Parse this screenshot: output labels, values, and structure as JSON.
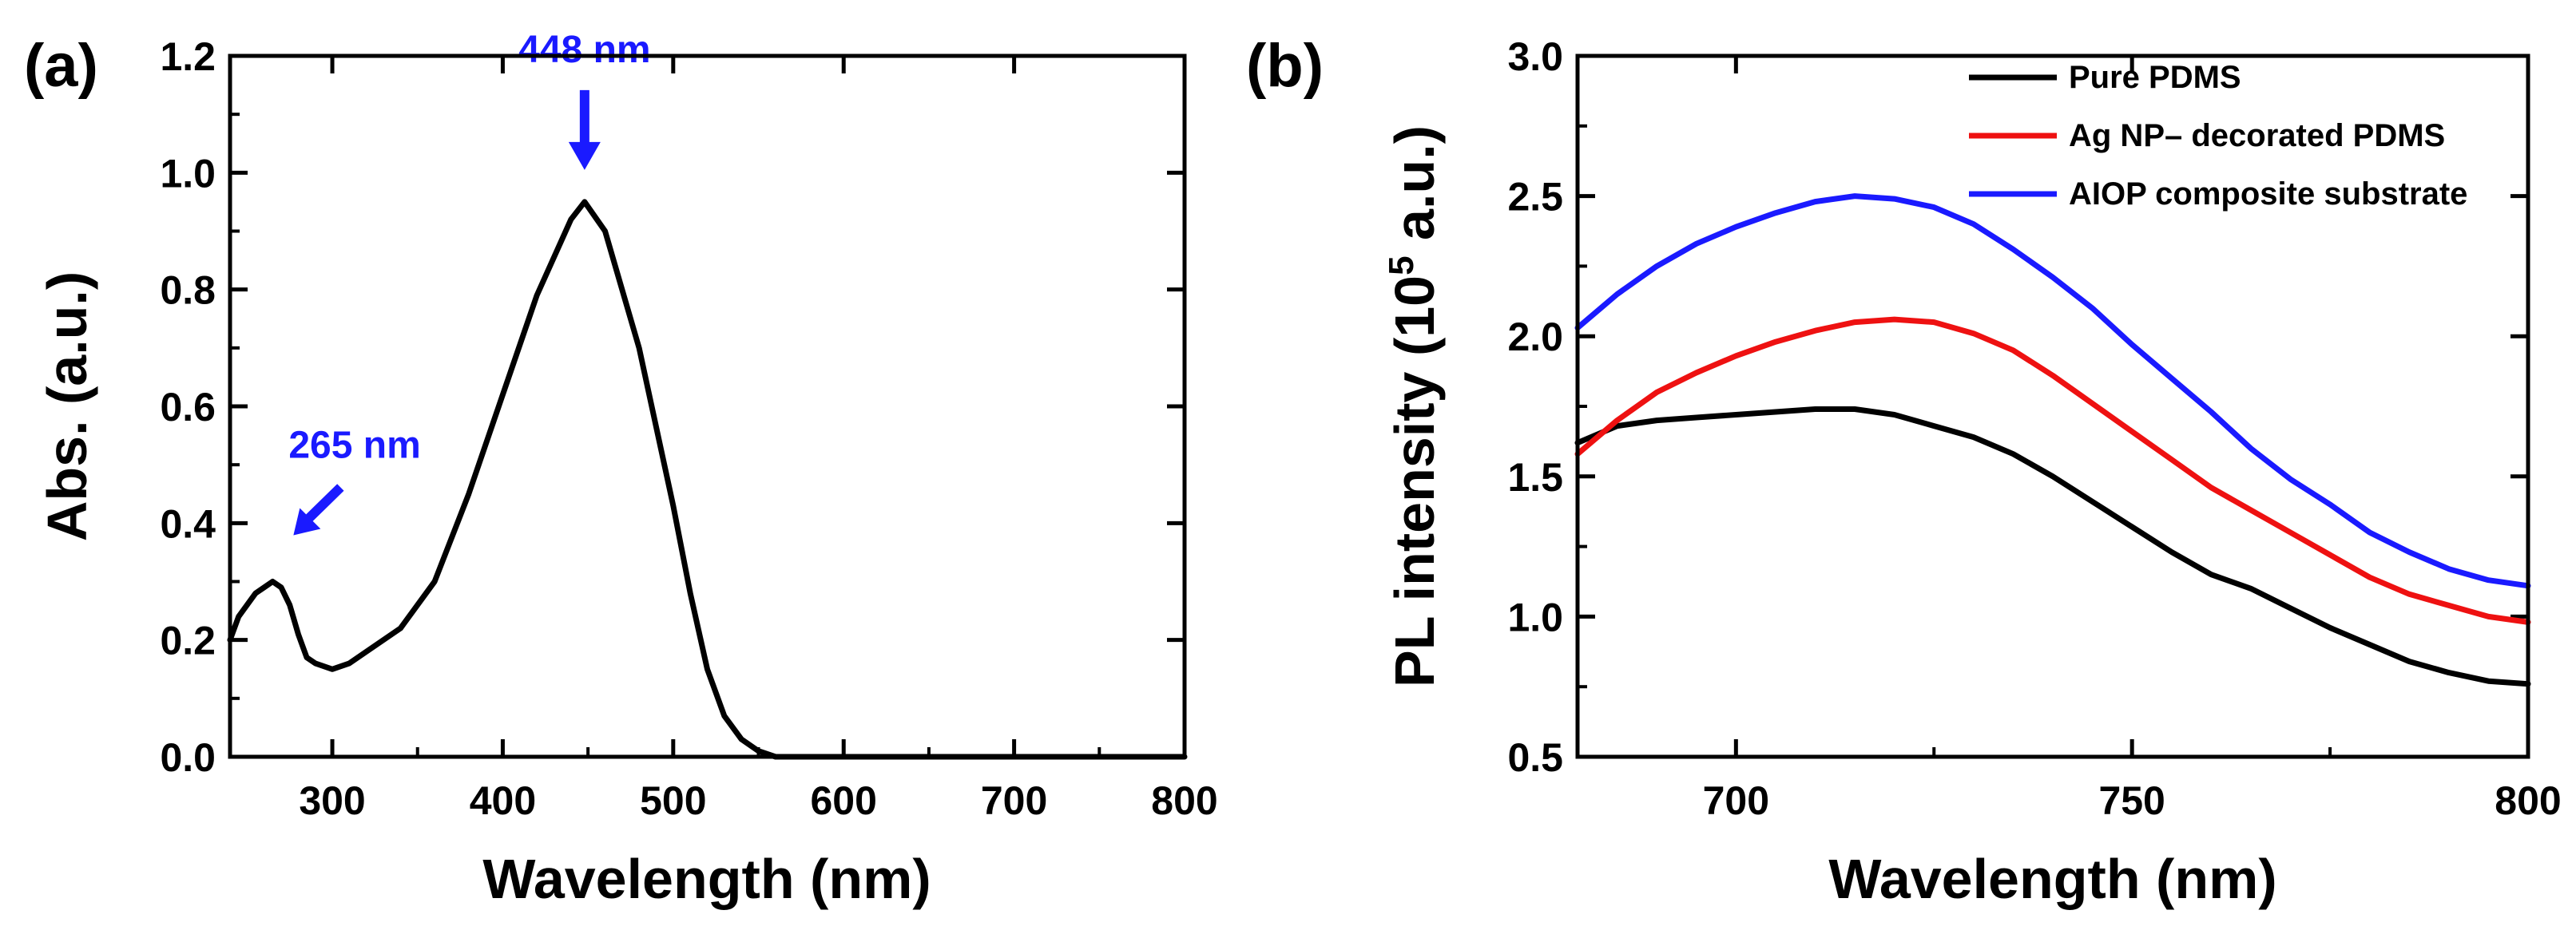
{
  "chart_data": [
    {
      "type": "line",
      "panel_label": "(a)",
      "xlabel": "Wavelength (nm)",
      "ylabel": "Abs. (a.u.)",
      "xlim": [
        240,
        800
      ],
      "ylim": [
        0.0,
        1.2
      ],
      "xticks": [
        300,
        400,
        500,
        600,
        700,
        800
      ],
      "xtick_labels": [
        "300",
        "400",
        "500",
        "600",
        "700",
        "800"
      ],
      "yticks": [
        0.0,
        0.2,
        0.4,
        0.6,
        0.8,
        1.0,
        1.2
      ],
      "ytick_labels": [
        "0.0",
        "0.2",
        "0.4",
        "0.6",
        "0.8",
        "1.0",
        "1.2"
      ],
      "series": [
        {
          "name": "Absorbance",
          "color": "#000000",
          "x": [
            240,
            245,
            250,
            255,
            260,
            265,
            270,
            275,
            280,
            285,
            290,
            300,
            310,
            320,
            340,
            360,
            380,
            400,
            420,
            440,
            448,
            460,
            480,
            500,
            510,
            520,
            530,
            540,
            550,
            560,
            570,
            580,
            600,
            650,
            700,
            800
          ],
          "y": [
            0.2,
            0.24,
            0.26,
            0.28,
            0.29,
            0.3,
            0.29,
            0.26,
            0.21,
            0.17,
            0.16,
            0.15,
            0.16,
            0.18,
            0.22,
            0.3,
            0.45,
            0.62,
            0.79,
            0.92,
            0.95,
            0.9,
            0.7,
            0.43,
            0.28,
            0.15,
            0.07,
            0.03,
            0.01,
            0.0,
            0.0,
            0.0,
            0.0,
            0.0,
            0.0,
            0.0
          ]
        }
      ],
      "annotations": [
        {
          "text": "265 nm",
          "x": 265,
          "y": 0.3,
          "color": "#1a1aff",
          "arrow": "diagonal"
        },
        {
          "text": "448 nm",
          "x": 448,
          "y": 0.95,
          "color": "#1a1aff",
          "arrow": "down"
        }
      ]
    },
    {
      "type": "line",
      "panel_label": "(b)",
      "xlabel": "Wavelength (nm)",
      "ylabel_main": "PL intensity (10",
      "ylabel_sup": "5",
      "ylabel_tail": " a.u.)",
      "xlim": [
        680,
        800
      ],
      "ylim": [
        0.5,
        3.0
      ],
      "xticks": [
        700,
        750,
        800
      ],
      "xtick_labels": [
        "700",
        "750",
        "800"
      ],
      "yticks": [
        0.5,
        1.0,
        1.5,
        2.0,
        2.5,
        3.0
      ],
      "ytick_labels": [
        "0.5",
        "1.0",
        "1.5",
        "2.0",
        "2.5",
        "3.0"
      ],
      "legend_position": "top-right",
      "series": [
        {
          "name": "Pure PDMS",
          "color": "#000000",
          "x": [
            680,
            685,
            690,
            695,
            700,
            705,
            710,
            715,
            720,
            725,
            730,
            735,
            740,
            745,
            750,
            755,
            760,
            765,
            770,
            775,
            780,
            785,
            790,
            795,
            800
          ],
          "y": [
            1.62,
            1.68,
            1.7,
            1.71,
            1.72,
            1.73,
            1.74,
            1.74,
            1.72,
            1.68,
            1.64,
            1.58,
            1.5,
            1.41,
            1.32,
            1.23,
            1.15,
            1.1,
            1.03,
            0.96,
            0.9,
            0.84,
            0.8,
            0.77,
            0.76
          ]
        },
        {
          "name": "Ag NP– decorated PDMS",
          "color": "#ee1111",
          "x": [
            680,
            685,
            690,
            695,
            700,
            705,
            710,
            715,
            720,
            725,
            730,
            735,
            740,
            745,
            750,
            755,
            760,
            765,
            770,
            775,
            780,
            785,
            790,
            795,
            800
          ],
          "y": [
            1.58,
            1.7,
            1.8,
            1.87,
            1.93,
            1.98,
            2.02,
            2.05,
            2.06,
            2.05,
            2.01,
            1.95,
            1.86,
            1.76,
            1.66,
            1.56,
            1.46,
            1.38,
            1.3,
            1.22,
            1.14,
            1.08,
            1.04,
            1.0,
            0.98
          ]
        },
        {
          "name": "AIOP composite substrate",
          "color": "#1a1aff",
          "x": [
            680,
            685,
            690,
            695,
            700,
            705,
            710,
            715,
            720,
            725,
            730,
            735,
            740,
            745,
            750,
            755,
            760,
            765,
            770,
            775,
            780,
            785,
            790,
            795,
            800
          ],
          "y": [
            2.03,
            2.15,
            2.25,
            2.33,
            2.39,
            2.44,
            2.48,
            2.5,
            2.49,
            2.46,
            2.4,
            2.31,
            2.21,
            2.1,
            1.97,
            1.85,
            1.73,
            1.6,
            1.49,
            1.4,
            1.3,
            1.23,
            1.17,
            1.13,
            1.11
          ]
        }
      ]
    }
  ]
}
